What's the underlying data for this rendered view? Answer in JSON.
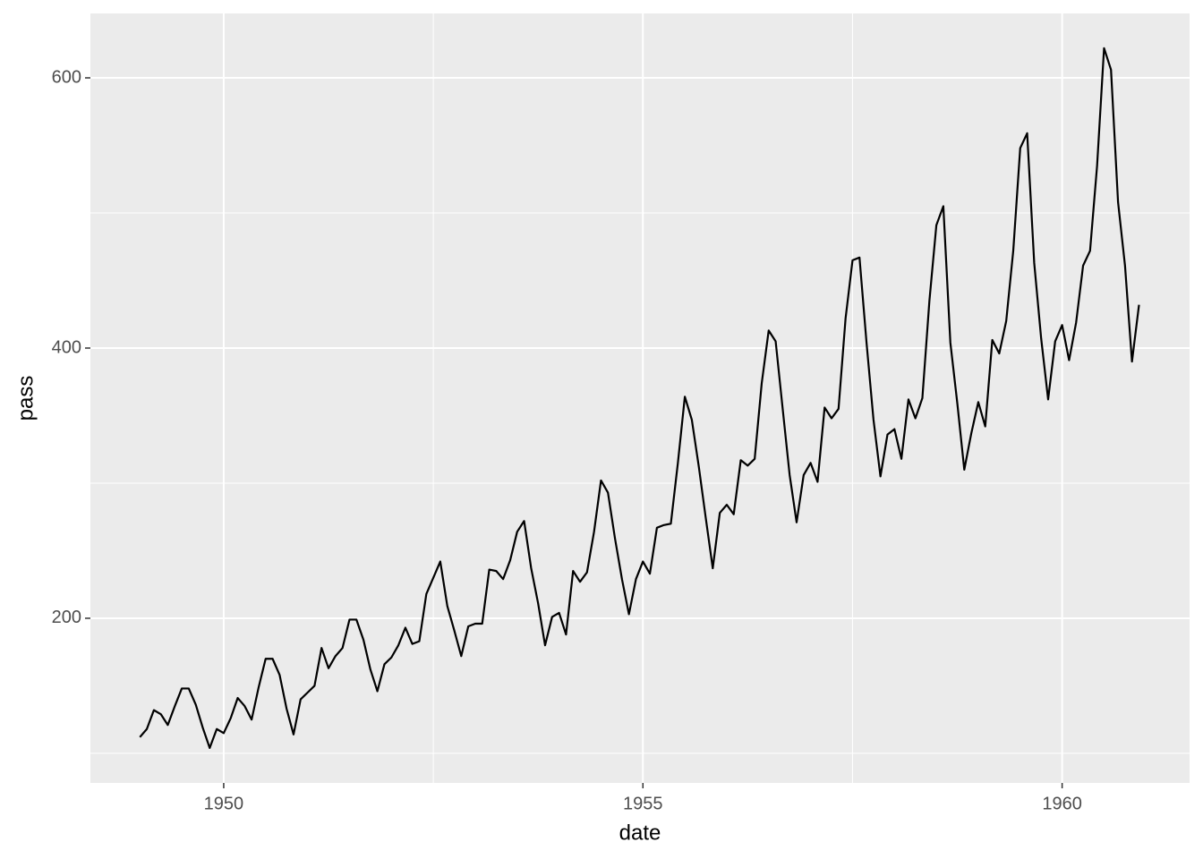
{
  "chart_data": {
    "type": "line",
    "x_label": "date",
    "y_label": "pass",
    "x": [
      1949,
      1949.083,
      1949.167,
      1949.25,
      1949.333,
      1949.417,
      1949.5,
      1949.583,
      1949.667,
      1949.75,
      1949.833,
      1949.917,
      1950,
      1950.083,
      1950.167,
      1950.25,
      1950.333,
      1950.417,
      1950.5,
      1950.583,
      1950.667,
      1950.75,
      1950.833,
      1950.917,
      1951,
      1951.083,
      1951.167,
      1951.25,
      1951.333,
      1951.417,
      1951.5,
      1951.583,
      1951.667,
      1951.75,
      1951.833,
      1951.917,
      1952,
      1952.083,
      1952.167,
      1952.25,
      1952.333,
      1952.417,
      1952.5,
      1952.583,
      1952.667,
      1952.75,
      1952.833,
      1952.917,
      1953,
      1953.083,
      1953.167,
      1953.25,
      1953.333,
      1953.417,
      1953.5,
      1953.583,
      1953.667,
      1953.75,
      1953.833,
      1953.917,
      1954,
      1954.083,
      1954.167,
      1954.25,
      1954.333,
      1954.417,
      1954.5,
      1954.583,
      1954.667,
      1954.75,
      1954.833,
      1954.917,
      1955,
      1955.083,
      1955.167,
      1955.25,
      1955.333,
      1955.417,
      1955.5,
      1955.583,
      1955.667,
      1955.75,
      1955.833,
      1955.917,
      1956,
      1956.083,
      1956.167,
      1956.25,
      1956.333,
      1956.417,
      1956.5,
      1956.583,
      1956.667,
      1956.75,
      1956.833,
      1956.917,
      1957,
      1957.083,
      1957.167,
      1957.25,
      1957.333,
      1957.417,
      1957.5,
      1957.583,
      1957.667,
      1957.75,
      1957.833,
      1957.917,
      1958,
      1958.083,
      1958.167,
      1958.25,
      1958.333,
      1958.417,
      1958.5,
      1958.583,
      1958.667,
      1958.75,
      1958.833,
      1958.917,
      1959,
      1959.083,
      1959.167,
      1959.25,
      1959.333,
      1959.417,
      1959.5,
      1959.583,
      1959.667,
      1959.75,
      1959.833,
      1959.917,
      1960,
      1960.083,
      1960.167,
      1960.25,
      1960.333,
      1960.417,
      1960.5,
      1960.583,
      1960.667,
      1960.75,
      1960.833,
      1960.917
    ],
    "values": [
      112,
      118,
      132,
      129,
      121,
      135,
      148,
      148,
      136,
      119,
      104,
      118,
      115,
      126,
      141,
      135,
      125,
      149,
      170,
      170,
      158,
      133,
      114,
      140,
      145,
      150,
      178,
      163,
      172,
      178,
      199,
      199,
      184,
      162,
      146,
      166,
      171,
      180,
      193,
      181,
      183,
      218,
      230,
      242,
      209,
      191,
      172,
      194,
      196,
      196,
      236,
      235,
      229,
      243,
      264,
      272,
      237,
      211,
      180,
      201,
      204,
      188,
      235,
      227,
      234,
      264,
      302,
      293,
      259,
      229,
      203,
      229,
      242,
      233,
      267,
      269,
      270,
      315,
      364,
      347,
      312,
      274,
      237,
      278,
      284,
      277,
      317,
      313,
      318,
      374,
      413,
      405,
      355,
      306,
      271,
      306,
      315,
      301,
      356,
      348,
      355,
      422,
      465,
      467,
      404,
      347,
      305,
      336,
      340,
      318,
      362,
      348,
      363,
      435,
      491,
      505,
      404,
      359,
      310,
      337,
      360,
      342,
      406,
      396,
      420,
      472,
      548,
      559,
      463,
      407,
      362,
      405,
      417,
      391,
      419,
      461,
      472,
      535,
      622,
      606,
      508,
      461,
      390,
      432
    ],
    "color": "#000000",
    "xlim": [
      1948.41,
      1961.52
    ],
    "xticks": [
      1950,
      1955,
      1960
    ],
    "xminor": [
      1952.5,
      1957.5
    ],
    "ylim": [
      78.1,
      647.7
    ],
    "yticks": [
      200,
      400,
      600
    ],
    "yminor": [
      100,
      300,
      500
    ],
    "grid": true
  }
}
